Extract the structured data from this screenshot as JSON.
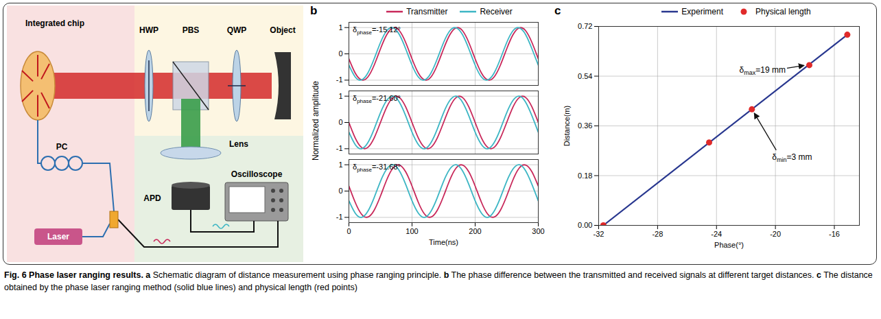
{
  "caption": {
    "label": "Fig. 6",
    "title": "Phase laser ranging results.",
    "parts": [
      {
        "letter": "a",
        "text": "Schematic diagram of distance measurement using phase ranging principle."
      },
      {
        "letter": "b",
        "text": "The phase difference between the transmitted and received signals at different target distances."
      },
      {
        "letter": "c",
        "text": "The distance obtained by the phase laser ranging method (solid blue lines) and physical length (red points)"
      }
    ]
  },
  "diagram": {
    "panel": "a",
    "labels": {
      "chip": "Integrated chip",
      "hwp": "HWP",
      "pbs": "PBS",
      "qwp": "QWP",
      "object": "Object",
      "pc": "PC",
      "laser": "Laser",
      "lens": "Lens",
      "apd": "APD",
      "oscilloscope": "Oscilloscope"
    }
  },
  "chart_data": [
    {
      "panel": "b",
      "type": "line",
      "legend": "top",
      "grid": true,
      "x_label": "Time(ns)",
      "y_label": "Normalized amplitude",
      "x": [
        0,
        10,
        20,
        30,
        40,
        50,
        60,
        70,
        80,
        90,
        100,
        110,
        120,
        130,
        140,
        150,
        160,
        170,
        180,
        190,
        200,
        210,
        220,
        230,
        240,
        250,
        260,
        270,
        280,
        290,
        300
      ],
      "xlim": [
        0,
        300
      ],
      "xticks": [
        0,
        100,
        200,
        300
      ],
      "ylim": [
        -1.2,
        1.2
      ],
      "yticks": [
        -1,
        0,
        1
      ],
      "subplots": [
        {
          "tick_labels": "y",
          "annotation": {
            "prefix": "δ",
            "subscript": "phase",
            "suffix": "=-15.12°"
          },
          "series": [
            {
              "name": "Transmitter",
              "color": "#c8285a",
              "values": [
                -0.19,
                -0.73,
                -0.99,
                -0.88,
                -0.43,
                0.19,
                0.73,
                0.99,
                0.88,
                0.43,
                -0.19,
                -0.73,
                -0.99,
                -0.88,
                -0.43,
                0.19,
                0.73,
                0.99,
                0.88,
                0.43,
                -0.19,
                -0.73,
                -0.99,
                -0.88,
                -0.43,
                0.19,
                0.73,
                0.99,
                0.88,
                0.43,
                -0.19
              ]
            },
            {
              "name": "Receiver",
              "color": "#3db6c4",
              "values": [
                -0.43,
                -0.88,
                -0.99,
                -0.73,
                -0.19,
                0.43,
                0.88,
                0.99,
                0.73,
                0.19,
                -0.43,
                -0.88,
                -0.99,
                -0.73,
                -0.19,
                0.43,
                0.88,
                0.99,
                0.73,
                0.19,
                -0.43,
                -0.88,
                -0.99,
                -0.73,
                -0.19,
                0.43,
                0.88,
                0.99,
                0.73,
                0.19,
                -0.43
              ]
            }
          ]
        },
        {
          "tick_labels": "y",
          "annotation": {
            "prefix": "δ",
            "subscript": "phase",
            "suffix": "=-21.60°"
          },
          "series": [
            {
              "name": "Transmitter",
              "color": "#c8285a",
              "values": [
                0,
                -0.59,
                -0.95,
                -0.95,
                -0.59,
                0,
                0.59,
                0.95,
                0.95,
                0.59,
                0,
                -0.59,
                -0.95,
                -0.95,
                -0.59,
                0,
                0.59,
                0.95,
                0.95,
                0.59,
                0,
                -0.59,
                -0.95,
                -0.95,
                -0.59,
                0,
                0.59,
                0.95,
                0.95,
                0.59,
                0
              ]
            },
            {
              "name": "Receiver",
              "color": "#3db6c4",
              "values": [
                -0.37,
                -0.84,
                -1,
                -0.77,
                -0.25,
                0.37,
                0.84,
                1,
                0.77,
                0.25,
                -0.37,
                -0.84,
                -1,
                -0.77,
                -0.25,
                0.37,
                0.84,
                1,
                0.77,
                0.25,
                -0.37,
                -0.84,
                -1,
                -0.77,
                -0.25,
                0.37,
                0.84,
                1,
                0.77,
                0.25,
                -0.37
              ]
            }
          ]
        },
        {
          "tick_labels": true,
          "annotation": {
            "prefix": "δ",
            "subscript": "phase",
            "suffix": "=-31.68°"
          },
          "series": [
            {
              "name": "Transmitter",
              "color": "#c8285a",
              "values": [
                0.19,
                -0.43,
                -0.88,
                -0.99,
                -0.73,
                -0.19,
                0.43,
                0.88,
                0.99,
                0.73,
                0.19,
                -0.43,
                -0.88,
                -0.99,
                -0.73,
                -0.19,
                0.43,
                0.88,
                0.99,
                0.73,
                0.19,
                -0.43,
                -0.88,
                -0.99,
                -0.73,
                -0.19,
                0.43,
                0.88,
                0.99,
                0.73,
                0.19
              ]
            },
            {
              "name": "Receiver",
              "color": "#3db6c4",
              "values": [
                -0.37,
                -0.84,
                -1,
                -0.77,
                -0.25,
                0.37,
                0.84,
                1,
                0.77,
                0.25,
                -0.37,
                -0.84,
                -1,
                -0.77,
                -0.25,
                0.37,
                0.84,
                1,
                0.77,
                0.25,
                -0.37,
                -0.84,
                -1,
                -0.77,
                -0.25,
                0.37,
                0.84,
                1,
                0.77,
                0.25,
                -0.37
              ]
            }
          ]
        }
      ]
    },
    {
      "panel": "c",
      "type": "line",
      "legend": "top",
      "grid": true,
      "x_label": "Phase(°)",
      "y_label": "Distance(m)",
      "xlim": [
        -32,
        -14.3
      ],
      "xticks": [
        -32,
        -28,
        -24,
        -20,
        -16
      ],
      "ylim": [
        0,
        0.72
      ],
      "yticks": [
        {
          "value": 0,
          "label": "0.00"
        },
        0.18,
        0.36,
        0.54,
        0.72
      ],
      "series": [
        {
          "name": "Experiment",
          "type": "line",
          "color": "#28378f",
          "x": [
            -31.68,
            -15.12
          ],
          "values": [
            0,
            0.69
          ]
        },
        {
          "name": "Physical length",
          "type": "scatter",
          "marker": "circle",
          "color": "#e02a2a",
          "x": [
            -31.68,
            -24.5,
            -21.6,
            -17.7,
            -15.12
          ],
          "values": [
            0,
            0.3,
            0.42,
            0.58,
            0.69
          ]
        }
      ],
      "annotations": [
        {
          "prefix": "δ",
          "subscript": "max",
          "suffix": "=19 mm",
          "x": -17.7,
          "y": 0.58
        },
        {
          "prefix": "δ",
          "subscript": "min",
          "suffix": "=3 mm",
          "x": -21.6,
          "y": 0.42
        }
      ]
    }
  ]
}
